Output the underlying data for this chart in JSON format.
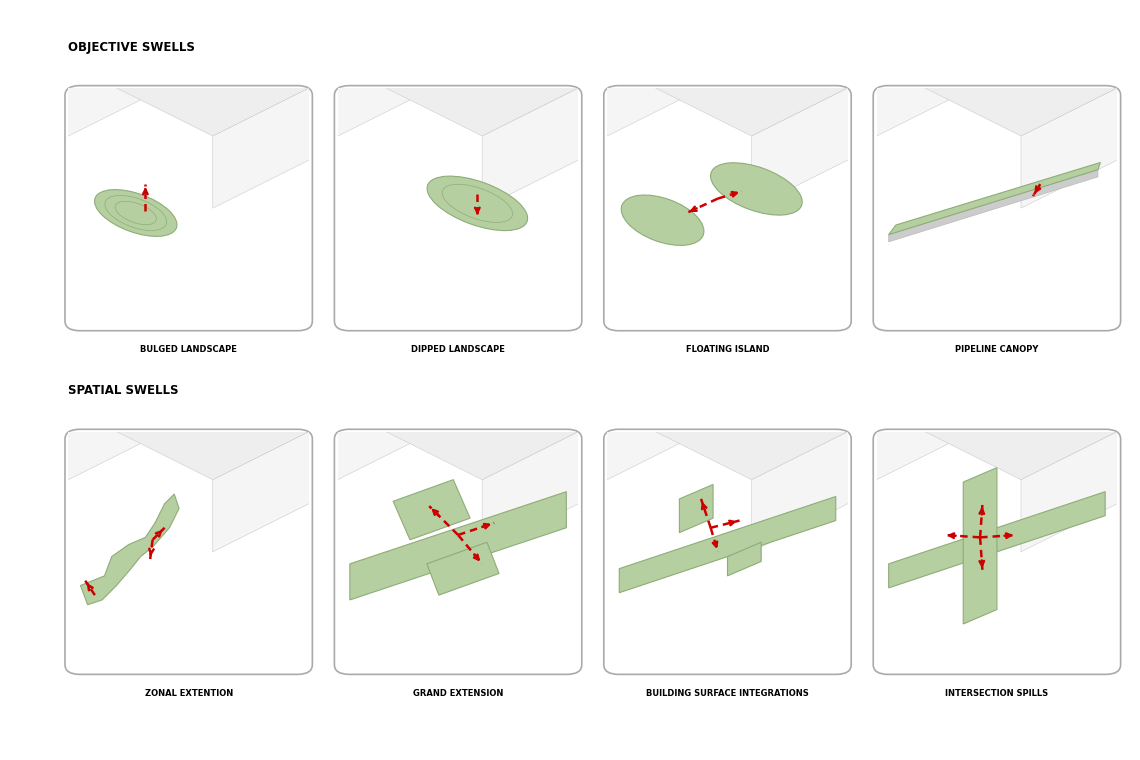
{
  "bg_color": "#ffffff",
  "section1_title": "OBJECTIVE SWELLS",
  "section2_title": "SPATIAL SWELLS",
  "row1_labels": [
    "BULGED LANDSCAPE",
    "DIPPED LANDSCAPE",
    "FLOATING ISLAND",
    "PIPELINE CANOPY"
  ],
  "row2_labels": [
    "ZONAL EXTENTION",
    "GRAND EXTENSION",
    "BUILDING SURFACE INTEGRATIONS",
    "INTERSECTION SPILLS"
  ],
  "green_fill": "#b5cfa0",
  "green_edge": "#8fac78",
  "building_top": "#eeeeee",
  "building_front": "#f5f5f5",
  "building_side": "#e0e0e0",
  "building_edge": "#cccccc",
  "red_arrow": "#cc0000",
  "box_edge": "#aaaaaa",
  "title_fontsize": 8.5,
  "label_fontsize": 6.0
}
